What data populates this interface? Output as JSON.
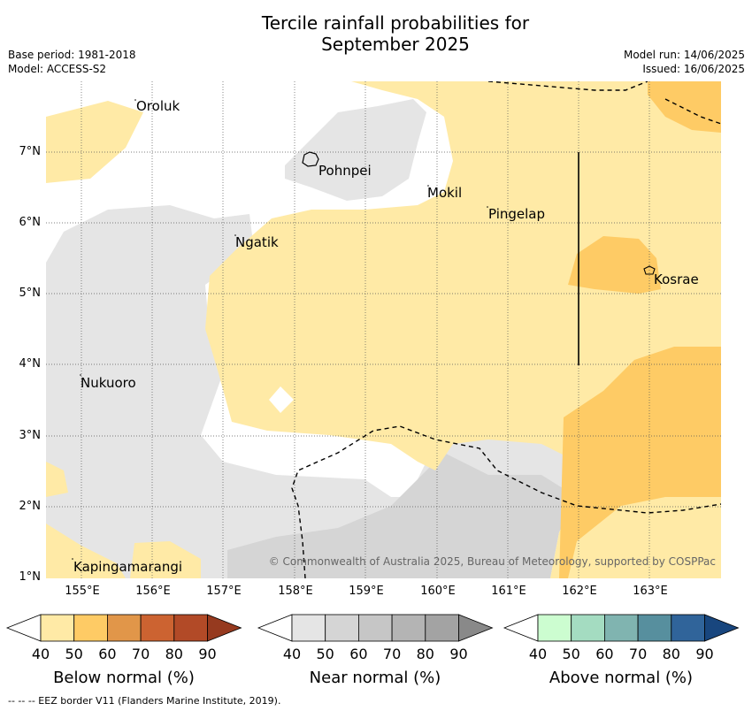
{
  "title_line1": "Tercile rainfall probabilities for",
  "title_line2": "September 2025",
  "meta": {
    "base_period": "Base period: 1981-2018",
    "model": "Model: ACCESS-S2",
    "model_run": "Model run: 14/06/2025",
    "issued": "Issued: 16/06/2025"
  },
  "map": {
    "lat_labels": [
      "7°N",
      "6°N",
      "5°N",
      "4°N",
      "3°N",
      "2°N",
      "1°N"
    ],
    "lon_labels": [
      "155°E",
      "156°E",
      "157°E",
      "158°E",
      "159°E",
      "160°E",
      "161°E",
      "162°E",
      "163°E"
    ],
    "places": {
      "oroluk": "Oroluk",
      "pohnpei": "Pohnpei",
      "mokil": "Mokil",
      "pingelap": "Pingelap",
      "ngatik": "Ngatik",
      "kosrae": "Kosrae",
      "nukuoro": "Nukuoro",
      "kapingamarangi": "Kapingamarangi"
    },
    "copyright": "© Commonwealth of Australia 2025, Bureau of Meteorology, supported by COSPPac"
  },
  "colorbars": [
    {
      "caption": "Below normal (%)",
      "ticks": [
        "40",
        "50",
        "60",
        "70",
        "80",
        "90"
      ],
      "colors": [
        "#ffeaa6",
        "#fecb65",
        "#e19649",
        "#cc6331",
        "#b24a27",
        "#963a1f"
      ]
    },
    {
      "caption": "Near normal (%)",
      "ticks": [
        "40",
        "50",
        "60",
        "70",
        "80",
        "90"
      ],
      "colors": [
        "#e5e5e5",
        "#d5d5d5",
        "#c6c6c6",
        "#b4b4b4",
        "#a3a3a3",
        "#898989"
      ]
    },
    {
      "caption": "Above normal (%)",
      "ticks": [
        "40",
        "50",
        "60",
        "70",
        "80",
        "90"
      ],
      "colors": [
        "#ccfdd0",
        "#a4dcc1",
        "#80b4b0",
        "#578f9e",
        "#30649a",
        "#18467e"
      ]
    }
  ],
  "footnote": "--  --  -- EEZ border V11 (Flanders Marine Institute, 2019)."
}
